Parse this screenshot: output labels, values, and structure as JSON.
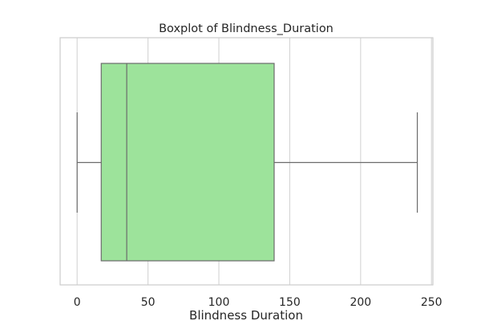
{
  "chart_data": {
    "type": "boxplot",
    "title": "Boxplot of Blindness_Duration",
    "xlabel": "Blindness Duration",
    "ylabel": "",
    "orientation": "horizontal",
    "xlim": [
      -12,
      251
    ],
    "xticks": [
      0,
      50,
      100,
      150,
      200,
      250
    ],
    "xtick_labels": [
      "0",
      "50",
      "100",
      "150",
      "200",
      "250"
    ],
    "grid": true,
    "box": {
      "whisker_low": 0,
      "q1": 17,
      "median": 35,
      "q3": 139,
      "whisker_high": 240
    },
    "colors": {
      "box_fill": "#9de39b",
      "box_edge": "#6b6b6b",
      "grid": "#d4d4d4",
      "frame": "#cccccc"
    }
  }
}
